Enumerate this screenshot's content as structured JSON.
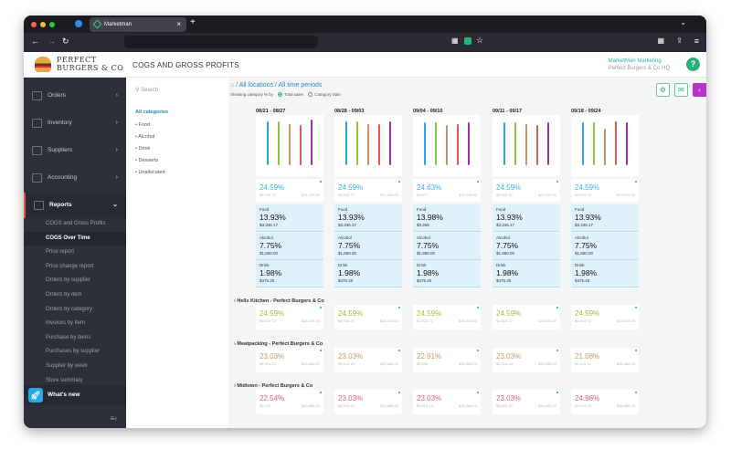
{
  "browser": {
    "tab_title": "Marketman",
    "back": "←",
    "forward": "→",
    "reload": "↻",
    "new_tab": "+",
    "close": "×",
    "menu": "≡"
  },
  "header": {
    "brand_line1": "PERFECT",
    "brand_line2": "BURGERS & CO",
    "title": "COGS AND GROSS PROFITS",
    "account_name": "MarketMan Marketing",
    "account_location": "Perfect Burgers & Co HQ",
    "help": "?"
  },
  "sidebar": {
    "items": [
      {
        "label": "Orders"
      },
      {
        "label": "Inventory"
      },
      {
        "label": "Suppliers"
      },
      {
        "label": "Accounting"
      },
      {
        "label": "Reports"
      }
    ],
    "reports_sub": [
      "COGS and Gross Profits",
      "COGS Over Time",
      "Price report",
      "Price change report",
      "Orders by supplier",
      "Orders by item",
      "Orders by category",
      "Invoices by item",
      "Purchase by items",
      "Purchases by supplier",
      "Supplier by week",
      "Store summary"
    ],
    "current_sub": "COGS Over Time",
    "whats_new": "What's new"
  },
  "filters": {
    "search_placeholder": "Search",
    "all_label": "All categories",
    "categories": [
      "Food",
      "Alcohol",
      "Drink",
      "Desserts",
      "Unallocated"
    ]
  },
  "breadcrumb": {
    "home": "⌂",
    "locations": "All locations",
    "periods": "All time periods"
  },
  "showing": {
    "label": "Showing category % by",
    "opt1": "Total sales",
    "opt2": "Category Sale",
    "selected": "Total sales"
  },
  "colors": {
    "total": "#3ab0e2",
    "hells": "#9bbf3a",
    "meat": "#c49a6c",
    "midtown": "#e0607a",
    "bars": [
      "#29a8e0",
      "#8cc63f",
      "#c4956a",
      "#e05a5a",
      "#9b2fb0"
    ]
  },
  "chart_data": {
    "type": "bar",
    "categories": [
      "Food",
      "Alcohol",
      "Drink",
      "Desserts",
      "Unallocated"
    ],
    "periods": [
      {
        "label": "08/21 - 08/27",
        "values": [
          135,
          134,
          125,
          123,
          139
        ]
      },
      {
        "label": "08/28 - 09/03",
        "values": [
          134,
          135,
          127,
          126,
          135
        ]
      },
      {
        "label": "09/04 - 09/10",
        "values": [
          132,
          132,
          123,
          125,
          132
        ]
      },
      {
        "label": "09/11 - 09/17",
        "values": [
          132,
          132,
          125,
          124,
          133
        ]
      },
      {
        "label": "09/18 - 09/24",
        "values": [
          133,
          133,
          113,
          135,
          132
        ]
      }
    ]
  },
  "periods": [
    {
      "total": {
        "pct": "24.59%",
        "a": "$5,916.72",
        "b": "$24,045.00"
      },
      "cats": [
        {
          "name": "Food",
          "pct": "13.93%",
          "val": "$3,346.17"
        },
        {
          "name": "Alcohol",
          "pct": "7.75%",
          "val": "$1,860.00"
        },
        {
          "name": "Drink",
          "pct": "1.98%",
          "val": "$475.20"
        }
      ]
    },
    {
      "total": {
        "pct": "24.59%",
        "a": "$5,916.72",
        "b": "$24,045.00"
      },
      "cats": [
        {
          "name": "Food",
          "pct": "13.93%",
          "val": "$3,346.17"
        },
        {
          "name": "Alcohol",
          "pct": "7.75%",
          "val": "$1,860.00"
        },
        {
          "name": "Drink",
          "pct": "1.98%",
          "val": "$475.20"
        }
      ]
    },
    {
      "total": {
        "pct": "24.63%",
        "a": "$5,871",
        "b": "$24,045.00"
      },
      "cats": [
        {
          "name": "Food",
          "pct": "13.98%",
          "val": "$3,356"
        },
        {
          "name": "Alcohol",
          "pct": "7.75%",
          "val": "$1,860.00"
        },
        {
          "name": "Drink",
          "pct": "1.98%",
          "val": "$475.20"
        }
      ]
    },
    {
      "total": {
        "pct": "24.59%",
        "a": "$5,916.72",
        "b": "$24,045.00"
      },
      "cats": [
        {
          "name": "Food",
          "pct": "13.93%",
          "val": "$3,346.17"
        },
        {
          "name": "Alcohol",
          "pct": "7.75%",
          "val": "$1,860.00"
        },
        {
          "name": "Drink",
          "pct": "1.98%",
          "val": "$475.20"
        }
      ]
    },
    {
      "total": {
        "pct": "24.59%",
        "a": "$5,916.72",
        "b": "$24,045.00"
      },
      "cats": [
        {
          "name": "Food",
          "pct": "13.93%",
          "val": "$3,346.17"
        },
        {
          "name": "Alcohol",
          "pct": "7.75%",
          "val": "$1,860.00"
        },
        {
          "name": "Drink",
          "pct": "1.98%",
          "val": "$475.20"
        }
      ]
    }
  ],
  "locations": [
    {
      "name": "Hells Kitchen - Perfect Burgers & Co",
      "color": "hells",
      "cells": [
        {
          "pct": "24.59%",
          "a": "$5,916.72",
          "b": "$24,045.00"
        },
        {
          "pct": "24.59%",
          "a": "$5,916.72",
          "b": "$24,045.00"
        },
        {
          "pct": "24.59%",
          "a": "$5,916.72",
          "b": "$24,045.00"
        },
        {
          "pct": "24.59%",
          "a": "$5,916.72",
          "b": "$24,045.00"
        },
        {
          "pct": "24.59%",
          "a": "$5,916.72",
          "b": "$24,045.00"
        }
      ]
    },
    {
      "name": "Meatpacking - Perfect Burgers & Co",
      "color": "meat",
      "cells": [
        {
          "pct": "23.03%",
          "a": "$5,916.15",
          "b": "$25,688.20"
        },
        {
          "pct": "23.03%",
          "a": "$5,916.15",
          "b": "$25,688.20"
        },
        {
          "pct": "22.91%",
          "a": "$5,886",
          "b": "$25,688.20"
        },
        {
          "pct": "23.03%",
          "a": "$5,916.15",
          "b": "$25,688.20"
        },
        {
          "pct": "21.08%",
          "a": "$5,415.15",
          "b": "$25,688.20"
        }
      ]
    },
    {
      "name": "Midtown - Perfect Burgers & Co",
      "color": "midtown",
      "cells": [
        {
          "pct": "22.54%",
          "a": "$5,791",
          "b": "$25,688.20"
        },
        {
          "pct": "23.03%",
          "a": "$5,916.15",
          "b": "$25,688.20"
        },
        {
          "pct": "23.03%",
          "a": "$5,916.15",
          "b": "$25,688.20"
        },
        {
          "pct": "23.03%",
          "a": "$5,916.15",
          "b": "$25,688.20"
        },
        {
          "pct": "24.98%",
          "a": "$6,416.15",
          "b": "$25,688.20"
        }
      ]
    }
  ]
}
